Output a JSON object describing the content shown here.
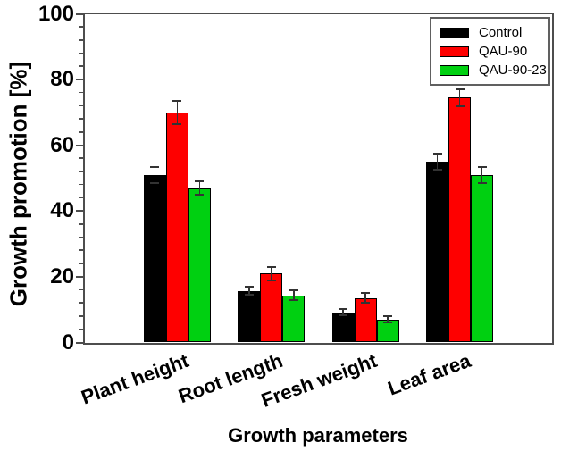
{
  "chart_data": {
    "type": "bar",
    "categories": [
      "Plant height",
      "Root length",
      "Fresh weight",
      "Leaf area"
    ],
    "series": [
      {
        "name": "Control",
        "color": "#000000",
        "values": [
          51,
          15.7,
          9.2,
          55
        ],
        "errors": [
          2.5,
          1.2,
          1,
          2.5
        ]
      },
      {
        "name": "QAU-90",
        "color": "#fe0000",
        "values": [
          70,
          21,
          13.5,
          74.5
        ],
        "errors": [
          3.5,
          2,
          1.5,
          2.5
        ]
      },
      {
        "name": "QAU-90-23",
        "color": "#00d011",
        "values": [
          47,
          14.3,
          7,
          51
        ],
        "errors": [
          2,
          1.5,
          1,
          2.5
        ]
      }
    ],
    "xlabel": "Growth parameters",
    "ylabel": "Growth promotion [%]",
    "ylim": [
      0,
      100
    ],
    "yticks": [
      0,
      20,
      40,
      60,
      80,
      100
    ],
    "minor_tick_step": 4,
    "legend_position": "top-right",
    "grid": false
  }
}
